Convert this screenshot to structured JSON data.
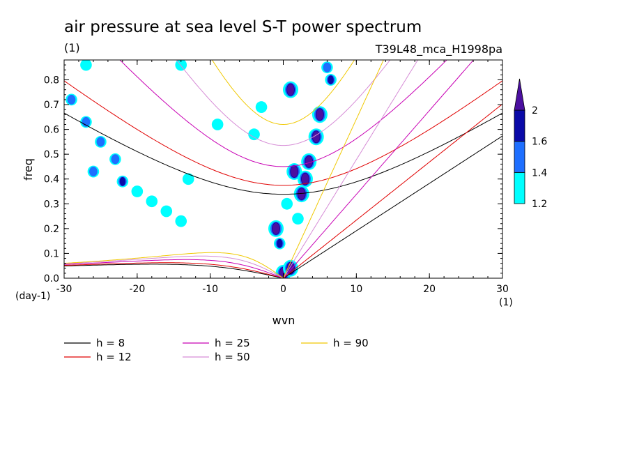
{
  "chart_data": {
    "type": "contour",
    "title": "air pressure at sea level S-T power spectrum",
    "subtitle_left": "(1)",
    "subtitle_right": "T39L48_mca_H1998pa",
    "xlabel": "wvn",
    "ylabel": "freq",
    "x_unit": "(1)",
    "y_unit": "(day-1)",
    "xlim": [
      -30,
      30
    ],
    "ylim": [
      0,
      0.88
    ],
    "x_ticks": [
      -30,
      -20,
      -10,
      0,
      10,
      20,
      30
    ],
    "x_tick_labels": [
      "-30",
      "-20",
      "-10",
      "0",
      "10",
      "20",
      "30"
    ],
    "y_ticks": [
      0,
      0.1,
      0.2,
      0.3,
      0.4,
      0.5,
      0.6,
      0.7,
      0.8
    ],
    "y_tick_labels": [
      "0.0",
      "0.1",
      "0.2",
      "0.3",
      "0.4",
      "0.5",
      "0.6",
      "0.7",
      "0.8"
    ],
    "colorbar": {
      "levels": [
        1.2,
        1.4,
        1.6,
        2
      ],
      "labels": [
        "1.2",
        "1.4",
        "1.6",
        "2"
      ],
      "colors": [
        "#00ffff",
        "#1e6fff",
        "#0a0aa8",
        "#4b0fa0"
      ]
    },
    "dispersion_series": [
      {
        "name": "h =  8",
        "h": 8,
        "color": "#000000"
      },
      {
        "name": "h = 12",
        "h": 12,
        "color": "#e00000"
      },
      {
        "name": "h = 25",
        "h": 25,
        "color": "#c800b4"
      },
      {
        "name": "h = 50",
        "h": 50,
        "color": "#d68cd6"
      },
      {
        "name": "h = 90",
        "h": 90,
        "color": "#f0c800"
      }
    ],
    "power_blobs": [
      {
        "x": 1.0,
        "y": 0.76,
        "level": 2
      },
      {
        "x": -1.0,
        "y": 0.2,
        "level": 2
      },
      {
        "x": 1.5,
        "y": 0.43,
        "level": 2
      },
      {
        "x": 2.5,
        "y": 0.34,
        "level": 2
      },
      {
        "x": 3.5,
        "y": 0.47,
        "level": 2
      },
      {
        "x": 4.5,
        "y": 0.57,
        "level": 2
      },
      {
        "x": 5.0,
        "y": 0.66,
        "level": 2
      },
      {
        "x": 3.0,
        "y": 0.4,
        "level": 2
      },
      {
        "x": 0.0,
        "y": 0.02,
        "level": 2
      },
      {
        "x": 1.0,
        "y": 0.04,
        "level": 2
      },
      {
        "x": -0.5,
        "y": 0.14,
        "level": 1.6
      },
      {
        "x": 6.5,
        "y": 0.8,
        "level": 1.6
      },
      {
        "x": 6.0,
        "y": 0.85,
        "level": 1.4
      },
      {
        "x": -29,
        "y": 0.72,
        "level": 1.4
      },
      {
        "x": -27,
        "y": 0.63,
        "level": 1.4
      },
      {
        "x": -25,
        "y": 0.55,
        "level": 1.4
      },
      {
        "x": -23,
        "y": 0.48,
        "level": 1.4
      },
      {
        "x": -26,
        "y": 0.43,
        "level": 1.4
      },
      {
        "x": -22,
        "y": 0.39,
        "level": 1.6
      },
      {
        "x": -20,
        "y": 0.35,
        "level": 1.2
      },
      {
        "x": -18,
        "y": 0.31,
        "level": 1.2
      },
      {
        "x": -16,
        "y": 0.27,
        "level": 1.2
      },
      {
        "x": -14,
        "y": 0.23,
        "level": 1.2
      },
      {
        "x": -13,
        "y": 0.4,
        "level": 1.2
      },
      {
        "x": -9,
        "y": 0.62,
        "level": 1.2
      },
      {
        "x": -4,
        "y": 0.58,
        "level": 1.2
      },
      {
        "x": -3,
        "y": 0.69,
        "level": 1.2
      },
      {
        "x": 2,
        "y": 0.24,
        "level": 1.2
      },
      {
        "x": 0.5,
        "y": 0.3,
        "level": 1.2
      },
      {
        "x": -27,
        "y": 0.86,
        "level": 1.2
      },
      {
        "x": -14,
        "y": 0.86,
        "level": 1.2
      }
    ]
  }
}
